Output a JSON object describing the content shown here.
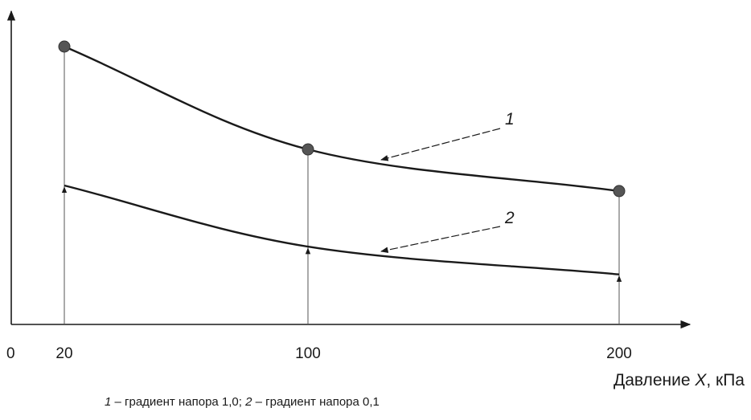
{
  "chart_data": {
    "type": "line",
    "x_axis_title": "Давление X, кПа",
    "x_axis_title_parts": [
      "Давление ",
      "X",
      ", кПа"
    ],
    "origin_label": "0",
    "x_ticks": [
      "20",
      "100",
      "200"
    ],
    "xlim": [
      0,
      200
    ],
    "series": [
      {
        "label": "1",
        "x": [
          20,
          100,
          200
        ],
        "y": [
          1.0,
          0.63,
          0.48
        ],
        "markers": true
      },
      {
        "label": "2",
        "x": [
          20,
          100,
          200
        ],
        "y": [
          0.5,
          0.28,
          0.18
        ],
        "markers": false
      }
    ],
    "caption": {
      "n1": "1",
      "t1": " – градиент напора 1,0; ",
      "n2": "2",
      "t2": " – градиент напора 0,1"
    },
    "grid": false
  }
}
